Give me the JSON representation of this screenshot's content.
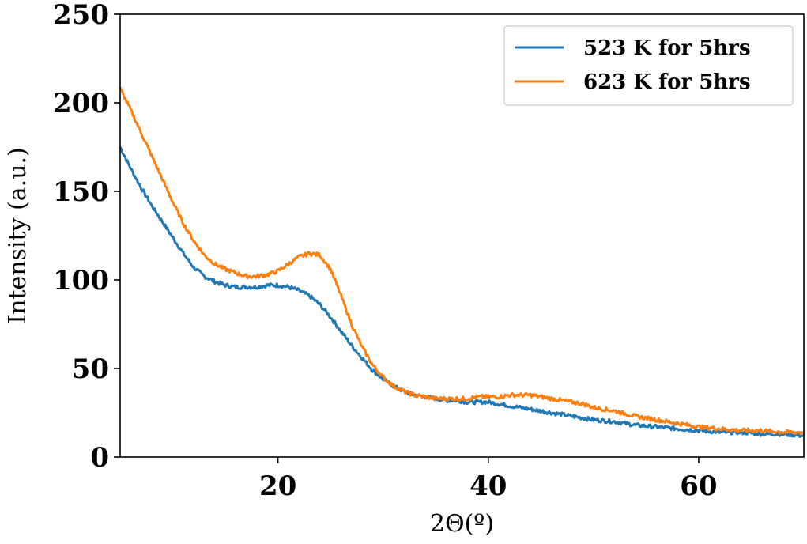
{
  "chart_data": {
    "type": "line",
    "title": "",
    "xlabel": "2Θ(º)",
    "ylabel": "Intensity (a.u.)",
    "xlim": [
      5,
      70
    ],
    "ylim": [
      0,
      250
    ],
    "xticks": [
      20,
      40,
      60
    ],
    "yticks": [
      0,
      50,
      100,
      150,
      200,
      250
    ],
    "grid": false,
    "legend_position": "top-right",
    "series": [
      {
        "name": "523 K for 5hrs",
        "color": "#1f77b4",
        "x": [
          5,
          6,
          7,
          8,
          9,
          10,
          11,
          12,
          13,
          14,
          15,
          16,
          17,
          18,
          19,
          20,
          21,
          22,
          23,
          24,
          25,
          26,
          27,
          28,
          29,
          30,
          31,
          32,
          33,
          34,
          35,
          36,
          37,
          38,
          39,
          40,
          41,
          42,
          43,
          44,
          45,
          46,
          47,
          48,
          49,
          50,
          52,
          54,
          56,
          58,
          60,
          62,
          64,
          66,
          68,
          70
        ],
        "y": [
          175,
          163,
          152,
          142,
          133,
          124,
          115,
          107,
          102,
          99,
          97,
          96,
          96,
          96,
          97,
          97,
          96,
          94,
          91,
          86,
          79,
          71,
          63,
          56,
          49,
          44,
          40,
          37,
          35,
          34,
          33,
          32,
          32,
          31,
          31,
          31,
          30,
          29,
          28,
          27,
          26,
          25,
          24,
          23,
          22,
          21,
          20,
          18,
          17,
          16,
          15,
          14,
          14,
          13,
          13,
          12
        ]
      },
      {
        "name": "623 K for 5hrs",
        "color": "#ff7f0e",
        "x": [
          5,
          6,
          7,
          8,
          9,
          10,
          11,
          12,
          13,
          14,
          15,
          16,
          17,
          18,
          19,
          20,
          21,
          22,
          23,
          24,
          25,
          26,
          27,
          28,
          29,
          30,
          31,
          32,
          33,
          34,
          35,
          36,
          37,
          38,
          39,
          40,
          41,
          42,
          43,
          44,
          45,
          46,
          47,
          48,
          49,
          50,
          52,
          54,
          56,
          58,
          60,
          62,
          64,
          66,
          68,
          70
        ],
        "y": [
          208,
          196,
          183,
          170,
          157,
          144,
          132,
          122,
          114,
          109,
          106,
          104,
          102,
          102,
          103,
          105,
          109,
          113,
          115,
          114,
          106,
          91,
          75,
          62,
          52,
          45,
          40,
          37,
          35,
          34,
          33,
          33,
          33,
          33,
          34,
          34,
          34,
          35,
          35,
          35,
          34,
          33,
          32,
          31,
          30,
          28,
          26,
          23,
          21,
          19,
          17,
          16,
          15,
          15,
          14,
          14
        ]
      }
    ]
  }
}
